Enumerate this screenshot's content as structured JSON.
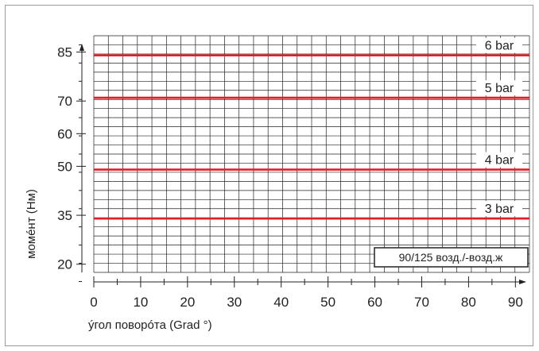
{
  "chart_data": {
    "type": "line",
    "xlabel": "ýгол поворóта  (Grad °)",
    "ylabel": "момéнт (Нм)",
    "xlim": [
      0,
      93
    ],
    "ylim": [
      17.5,
      90
    ],
    "x_ticks": [
      0,
      10,
      20,
      30,
      40,
      50,
      60,
      70,
      80,
      90
    ],
    "y_ticks": [
      20,
      35,
      50,
      60,
      70,
      85
    ],
    "grid": true,
    "annotation": "90/125 возд./-возд.ж",
    "series": [
      {
        "name": "6 bar",
        "x": [
          0,
          93
        ],
        "values": [
          84,
          84
        ]
      },
      {
        "name": "5 bar",
        "x": [
          0,
          93
        ],
        "values": [
          71,
          71
        ]
      },
      {
        "name": "4 bar",
        "x": [
          0,
          93
        ],
        "values": [
          49,
          49
        ]
      },
      {
        "name": "3 bar",
        "x": [
          0,
          93
        ],
        "values": [
          34,
          34
        ]
      }
    ],
    "colors": {
      "series": "#e31e24",
      "grid": "#222222",
      "axis": "#222222"
    }
  }
}
